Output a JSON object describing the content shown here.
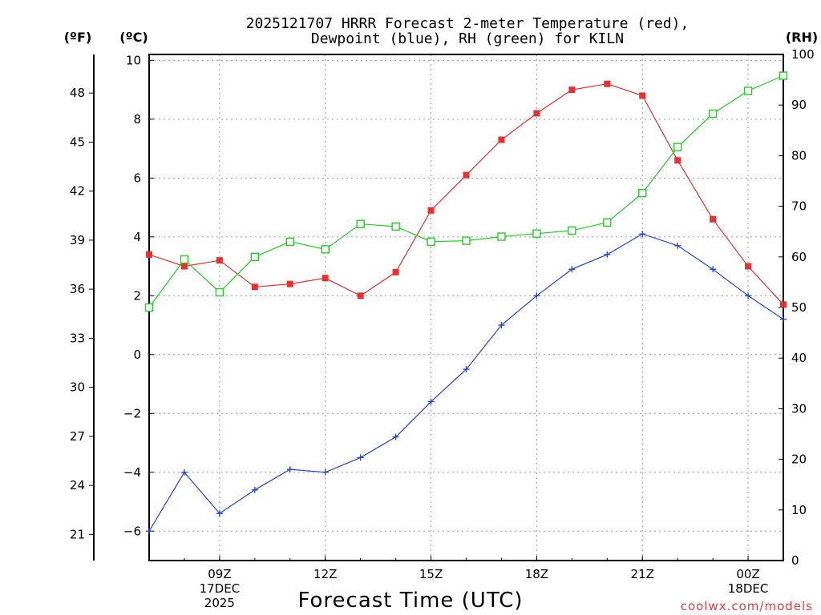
{
  "chart_data": {
    "type": "line",
    "title_lines": [
      "2025121707 HRRR Forecast 2-meter Temperature (red),",
      "Dewpoint (blue), RH (green) for KILN"
    ],
    "xlabel": "Forecast Time (UTC)",
    "credit": "coolwx.com/models",
    "units": {
      "fahrenheit": "(ºF)",
      "celsius": "(ºC)",
      "rh": "(RH)"
    },
    "x_hours": [
      7,
      8,
      9,
      10,
      11,
      12,
      13,
      14,
      15,
      16,
      17,
      18,
      19,
      20,
      21,
      22,
      23,
      24,
      25
    ],
    "x_ticks": [
      {
        "hour": 9,
        "lines": [
          "09Z",
          "17DEC",
          "2025"
        ]
      },
      {
        "hour": 12,
        "lines": [
          "12Z"
        ]
      },
      {
        "hour": 15,
        "lines": [
          "15Z"
        ]
      },
      {
        "hour": 18,
        "lines": [
          "18Z"
        ]
      },
      {
        "hour": 21,
        "lines": [
          "21Z"
        ]
      },
      {
        "hour": 24,
        "lines": [
          "00Z",
          "18DEC"
        ]
      }
    ],
    "xlim": [
      7,
      25
    ],
    "celsius_axis": {
      "ylim": [
        -7,
        10.2
      ],
      "ticks": [
        10,
        8,
        6,
        4,
        2,
        0,
        -2,
        -4,
        -6
      ],
      "tick_labels": [
        "10",
        "8",
        "6",
        "4",
        "2",
        "0",
        "−2",
        "−4",
        "−6"
      ]
    },
    "fahrenheit_axis": {
      "ticks": [
        48,
        45,
        42,
        39,
        36,
        33,
        30,
        27,
        24,
        21
      ]
    },
    "rh_axis": {
      "ylim": [
        0,
        100
      ],
      "ticks": [
        100,
        90,
        80,
        70,
        60,
        50,
        40,
        30,
        20,
        10,
        0
      ]
    },
    "series": [
      {
        "name": "2-meter Temperature",
        "units": "C",
        "color": "#e83030",
        "marker": "filled-square",
        "values": [
          3.4,
          3.0,
          3.2,
          2.3,
          2.4,
          2.6,
          2.0,
          2.8,
          4.9,
          6.1,
          7.3,
          8.2,
          9.0,
          9.2,
          8.8,
          6.6,
          4.6,
          3.0,
          1.7
        ]
      },
      {
        "name": "Dewpoint",
        "units": "C",
        "color": "#2040e8",
        "marker": "plus",
        "values": [
          -6.0,
          -4.0,
          -5.4,
          -4.6,
          -3.9,
          -4.0,
          -3.5,
          -2.8,
          -1.6,
          -0.5,
          1.0,
          2.0,
          2.9,
          3.4,
          4.1,
          3.7,
          2.9,
          2.0,
          1.2
        ]
      },
      {
        "name": "RH",
        "units": "%",
        "color": "#20d020",
        "marker": "open-square",
        "values": [
          50,
          59.5,
          53,
          60,
          63,
          61.5,
          66.5,
          66,
          63,
          63.2,
          64,
          64.6,
          65.2,
          66.8,
          72.6,
          81.7,
          88.3,
          92.8,
          95.8
        ]
      }
    ],
    "grid": true
  }
}
